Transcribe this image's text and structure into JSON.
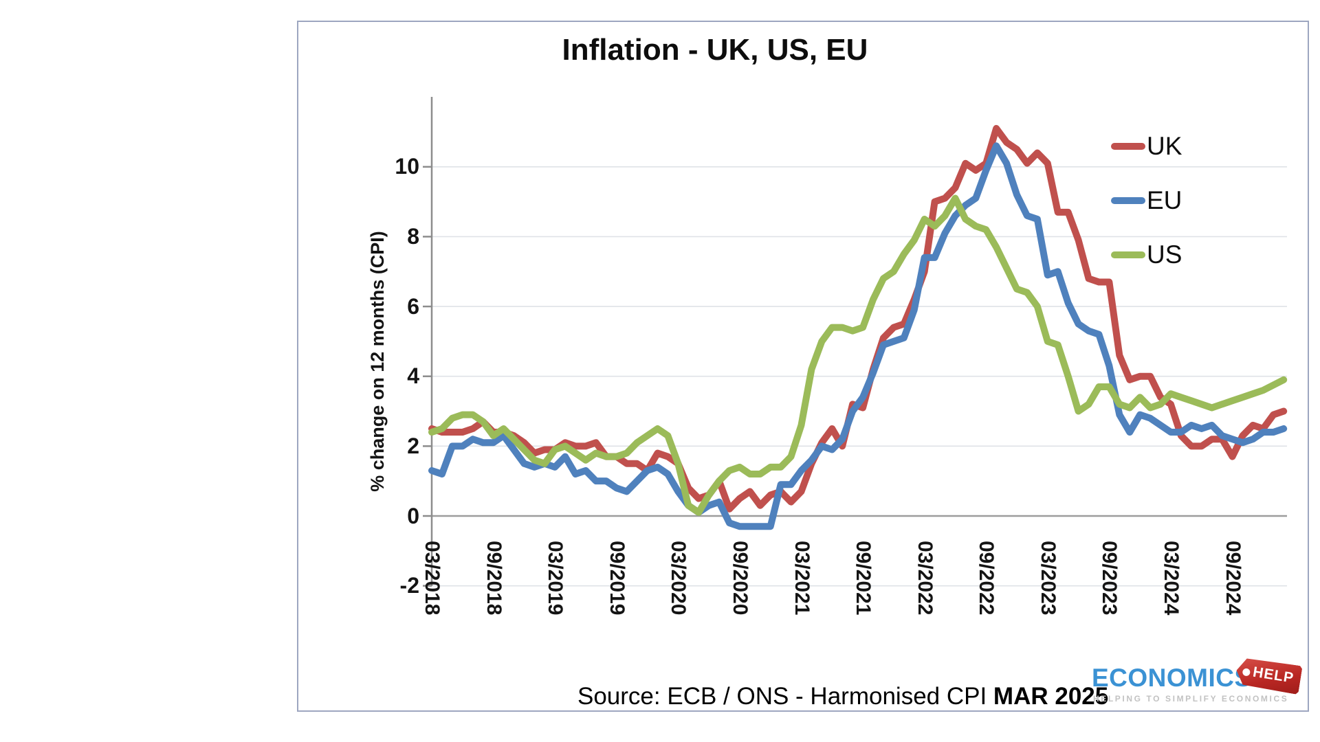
{
  "page": {
    "source": {
      "prefix": "Source: ECB / ONS - Harmonised CPI ",
      "bold": "MAR 2025"
    },
    "logo": {
      "wordmark": "ECONOMICS",
      "tag": "HELP",
      "tagline": "HELPING TO SIMPLIFY ECONOMICS",
      "wordmark_color": "#3b92d4",
      "tag_color": "#b92723"
    }
  },
  "chart_data": {
    "type": "line",
    "title": "Inflation - UK, US, EU",
    "xlabel": "",
    "ylabel": "% change on 12 months (CPI)",
    "ylim": [
      -2,
      12
    ],
    "grid": "horizontal-light, darker line at 0",
    "legend_position": "right",
    "frequency": "monthly",
    "x_start": "03/2018",
    "x_end": "02/2025",
    "x_tick_labels": [
      "03/2018",
      "09/2018",
      "03/2019",
      "09/2019",
      "03/2020",
      "09/2020",
      "03/2021",
      "09/2021",
      "03/2022",
      "09/2022",
      "03/2023",
      "09/2023",
      "03/2024",
      "09/2024"
    ],
    "x_tick_month_indices": [
      0,
      6,
      12,
      18,
      24,
      30,
      36,
      42,
      48,
      54,
      60,
      66,
      72,
      78
    ],
    "y_ticks": [
      {
        "v": 10,
        "label": "10"
      },
      {
        "v": 8,
        "label": "8"
      },
      {
        "v": 6,
        "label": "6"
      },
      {
        "v": 4,
        "label": "4"
      },
      {
        "v": 2,
        "label": "2"
      },
      {
        "v": 0,
        "label": "0"
      },
      {
        "v": -2,
        "label": "-2"
      }
    ],
    "series": [
      {
        "name": "UK",
        "color": "#C0504D",
        "values": [
          2.5,
          2.4,
          2.4,
          2.4,
          2.5,
          2.7,
          2.4,
          2.4,
          2.3,
          2.1,
          1.8,
          1.9,
          1.9,
          2.1,
          2.0,
          2.0,
          2.1,
          1.7,
          1.7,
          1.5,
          1.5,
          1.3,
          1.8,
          1.7,
          1.5,
          0.8,
          0.5,
          0.6,
          1.0,
          0.2,
          0.5,
          0.7,
          0.3,
          0.6,
          0.7,
          0.4,
          0.7,
          1.5,
          2.1,
          2.5,
          2.0,
          3.2,
          3.1,
          4.2,
          5.1,
          5.4,
          5.5,
          6.2,
          7.0,
          9.0,
          9.1,
          9.4,
          10.1,
          9.9,
          10.1,
          11.1,
          10.7,
          10.5,
          10.1,
          10.4,
          10.1,
          8.7,
          8.7,
          7.9,
          6.8,
          6.7,
          6.7,
          4.6,
          3.9,
          4.0,
          4.0,
          3.4,
          3.2,
          2.3,
          2.0,
          2.0,
          2.2,
          2.2,
          1.7,
          2.3,
          2.6,
          2.5,
          2.9,
          3.0
        ]
      },
      {
        "name": "EU",
        "color": "#4F81BD",
        "values": [
          1.3,
          1.2,
          2.0,
          2.0,
          2.2,
          2.1,
          2.1,
          2.3,
          1.9,
          1.5,
          1.4,
          1.5,
          1.4,
          1.7,
          1.2,
          1.3,
          1.0,
          1.0,
          0.8,
          0.7,
          1.0,
          1.3,
          1.4,
          1.2,
          0.7,
          0.3,
          0.1,
          0.3,
          0.4,
          -0.2,
          -0.3,
          -0.3,
          -0.3,
          -0.3,
          0.9,
          0.9,
          1.3,
          1.6,
          2.0,
          1.9,
          2.2,
          3.0,
          3.4,
          4.1,
          4.9,
          5.0,
          5.1,
          5.9,
          7.4,
          7.4,
          8.1,
          8.6,
          8.9,
          9.1,
          9.9,
          10.6,
          10.1,
          9.2,
          8.6,
          8.5,
          6.9,
          7.0,
          6.1,
          5.5,
          5.3,
          5.2,
          4.3,
          2.9,
          2.4,
          2.9,
          2.8,
          2.6,
          2.4,
          2.4,
          2.6,
          2.5,
          2.6,
          2.3,
          2.2,
          2.1,
          2.2,
          2.4,
          2.4,
          2.5
        ]
      },
      {
        "name": "US",
        "color": "#9BBB59",
        "values": [
          2.4,
          2.5,
          2.8,
          2.9,
          2.9,
          2.7,
          2.3,
          2.5,
          2.2,
          1.9,
          1.6,
          1.5,
          1.9,
          2.0,
          1.8,
          1.6,
          1.8,
          1.7,
          1.7,
          1.8,
          2.1,
          2.3,
          2.5,
          2.3,
          1.5,
          0.3,
          0.1,
          0.6,
          1.0,
          1.3,
          1.4,
          1.2,
          1.2,
          1.4,
          1.4,
          1.7,
          2.6,
          4.2,
          5.0,
          5.4,
          5.4,
          5.3,
          5.4,
          6.2,
          6.8,
          7.0,
          7.5,
          7.9,
          8.5,
          8.3,
          8.6,
          9.1,
          8.5,
          8.3,
          8.2,
          7.7,
          7.1,
          6.5,
          6.4,
          6.0,
          5.0,
          4.9,
          4.0,
          3.0,
          3.2,
          3.7,
          3.7,
          3.2,
          3.1,
          3.4,
          3.1,
          3.2,
          3.5,
          3.4,
          3.3,
          3.2,
          3.1,
          3.2,
          3.3,
          3.4,
          3.5,
          3.6,
          3.75,
          3.9
        ]
      }
    ]
  }
}
